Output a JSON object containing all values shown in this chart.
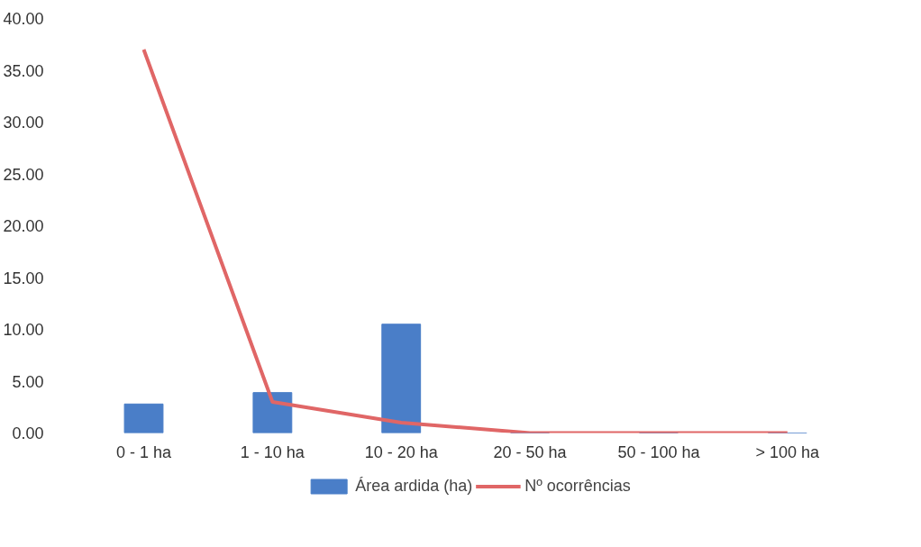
{
  "chart_data": {
    "type": "bar",
    "categories": [
      "0 - 1 ha",
      "1 - 10 ha",
      "10 - 20 ha",
      "20 - 50 ha",
      "50 - 100 ha",
      "> 100 ha"
    ],
    "series": [
      {
        "name": "Área ardida (ha)",
        "color": "#4a7ec8",
        "values": [
          2.8,
          3.9,
          10.5,
          0,
          0,
          0
        ]
      },
      {
        "name": "Nº ocorrências",
        "type": "line",
        "color": "#e06666",
        "values": [
          37,
          3,
          1,
          0,
          0,
          0
        ]
      }
    ],
    "ylim": [
      0,
      40
    ],
    "yticks": [
      {
        "value": 0,
        "label": "0.00"
      },
      {
        "value": 5,
        "label": "5.00"
      },
      {
        "value": 10,
        "label": "10.00"
      },
      {
        "value": 15,
        "label": "15.00"
      },
      {
        "value": 20,
        "label": "20.00"
      },
      {
        "value": 25,
        "label": "25.00"
      },
      {
        "value": 30,
        "label": "30.00"
      },
      {
        "value": 35,
        "label": "35.00"
      },
      {
        "value": 40,
        "label": "40.00"
      }
    ],
    "grid": false,
    "legend": "bottom"
  }
}
